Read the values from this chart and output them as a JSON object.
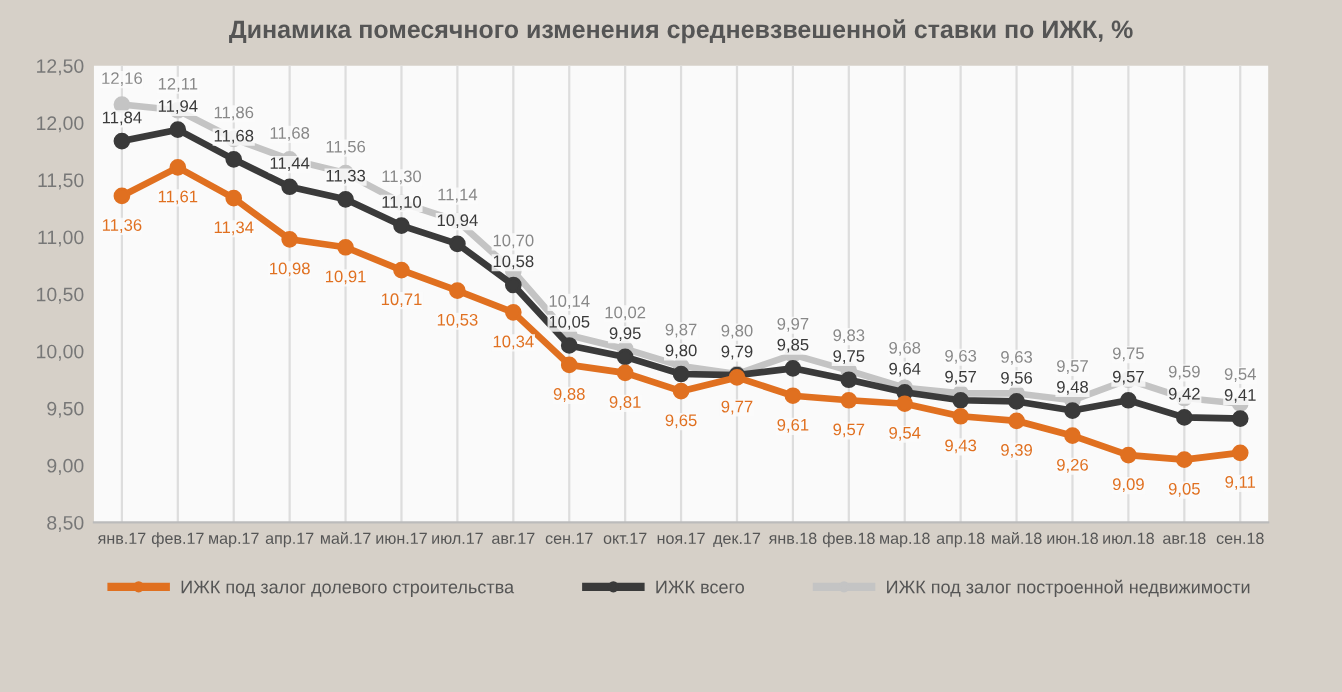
{
  "chart_data": {
    "type": "line",
    "title": "Динамика помесячного изменения средневзвешенной ставки по ИЖК, %",
    "categories": [
      "янв.17",
      "фев.17",
      "мар.17",
      "апр.17",
      "май.17",
      "июн.17",
      "июл.17",
      "авг.17",
      "сен.17",
      "окт.17",
      "ноя.17",
      "дек.17",
      "янв.18",
      "фев.18",
      "мар.18",
      "апр.18",
      "май.18",
      "июн.18",
      "июл.18",
      "авг.18",
      "сен.18"
    ],
    "series": [
      {
        "name": "ИЖК под залог долевого строительства",
        "color": "#e07020",
        "values": [
          11.36,
          11.61,
          11.34,
          10.98,
          10.91,
          10.71,
          10.53,
          10.34,
          9.88,
          9.81,
          9.65,
          9.77,
          9.61,
          9.57,
          9.54,
          9.43,
          9.39,
          9.26,
          9.09,
          9.05,
          9.11
        ],
        "value_labels": [
          "11,36",
          "11,61",
          "11,34",
          "10,98",
          "10,91",
          "10,71",
          "10,53",
          "10,34",
          "9,88",
          "9,81",
          "9,65",
          "9,77",
          "9,61",
          "9,57",
          "9,54",
          "9,43",
          "9,39",
          "9,26",
          "9,09",
          "9,05",
          "9,11"
        ]
      },
      {
        "name": "ИЖК всего",
        "color": "#3a3a3a",
        "values": [
          11.84,
          11.94,
          11.68,
          11.44,
          11.33,
          11.1,
          10.94,
          10.58,
          10.05,
          9.95,
          9.8,
          9.79,
          9.85,
          9.75,
          9.64,
          9.57,
          9.56,
          9.48,
          9.57,
          9.42,
          9.41
        ],
        "value_labels": [
          "11,84",
          "11,94",
          "11,68",
          "11,44",
          "11,33",
          "11,10",
          "10,94",
          "10,58",
          "10,05",
          "9,95",
          "9,80",
          "9,79",
          "9,85",
          "9,75",
          "9,64",
          "9,57",
          "9,56",
          "9,48",
          "9,57",
          "9,42",
          "9,41"
        ]
      },
      {
        "name": "ИЖК под залог построенной недвижимости",
        "color": "#c4c4c4",
        "values": [
          12.16,
          12.11,
          11.86,
          11.68,
          11.56,
          11.3,
          11.14,
          10.7,
          10.14,
          10.02,
          9.87,
          9.8,
          9.97,
          9.83,
          9.68,
          9.63,
          9.63,
          9.57,
          9.75,
          9.59,
          9.54
        ],
        "value_labels": [
          "12,16",
          "12,11",
          "11,86",
          "11,68",
          "11,56",
          "11,30",
          "11,14",
          "10,70",
          "10,14",
          "10,02",
          "9,87",
          "9,80",
          "9,97",
          "9,83",
          "9,68",
          "9,63",
          "9,63",
          "9,57",
          "9,75",
          "9,59",
          "9,54"
        ]
      }
    ],
    "ylim": [
      8.5,
      12.5
    ],
    "yticks": [
      {
        "value": 8.5,
        "label": "8,50"
      },
      {
        "value": 9.0,
        "label": "9,00"
      },
      {
        "value": 9.5,
        "label": "9,50"
      },
      {
        "value": 10.0,
        "label": "10,00"
      },
      {
        "value": 10.5,
        "label": "10,50"
      },
      {
        "value": 11.0,
        "label": "11,00"
      },
      {
        "value": 11.5,
        "label": "11,50"
      },
      {
        "value": 12.0,
        "label": "12,00"
      },
      {
        "value": 12.5,
        "label": "12,50"
      }
    ],
    "grid": "x",
    "legend": "bottom",
    "marker": "circle",
    "line_style": "solid"
  }
}
